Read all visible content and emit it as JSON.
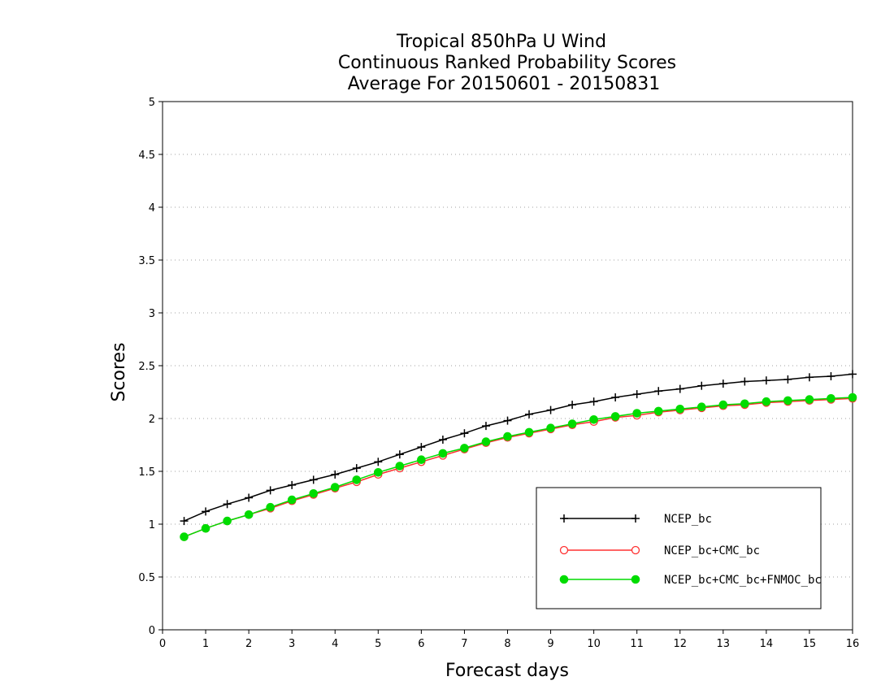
{
  "chart_data": {
    "type": "line",
    "title": [
      "Tropical 850hPa U Wind",
      "Continuous Ranked Probability Scores",
      "Average For 20150601 - 20150831"
    ],
    "xlabel": "Forecast days",
    "ylabel": "Scores",
    "xlim": [
      0,
      16
    ],
    "ylim": [
      0,
      5
    ],
    "x_ticks": [
      "0",
      "1",
      "2",
      "3",
      "4",
      "5",
      "6",
      "7",
      "8",
      "9",
      "10",
      "11",
      "12",
      "13",
      "14",
      "15",
      "16"
    ],
    "y_ticks": [
      "0",
      "0.5",
      "1",
      "1.5",
      "2",
      "2.5",
      "3",
      "3.5",
      "4",
      "4.5",
      "5"
    ],
    "grid": "horizontal dotted",
    "legend_position": "bottom-right",
    "x": [
      0.5,
      1,
      1.5,
      2,
      2.5,
      3,
      3.5,
      4,
      4.5,
      5,
      5.5,
      6,
      6.5,
      7,
      7.5,
      8,
      8.5,
      9,
      9.5,
      10,
      10.5,
      11,
      11.5,
      12,
      12.5,
      13,
      13.5,
      14,
      14.5,
      15,
      15.5,
      16
    ],
    "series": [
      {
        "name": "NCEP_bc",
        "color": "#000000",
        "marker": "plus",
        "values": [
          1.03,
          1.12,
          1.19,
          1.25,
          1.32,
          1.37,
          1.42,
          1.47,
          1.53,
          1.59,
          1.66,
          1.73,
          1.8,
          1.86,
          1.93,
          1.98,
          2.04,
          2.08,
          2.13,
          2.16,
          2.2,
          2.23,
          2.26,
          2.28,
          2.31,
          2.33,
          2.35,
          2.36,
          2.37,
          2.39,
          2.4,
          2.42
        ]
      },
      {
        "name": "NCEP_bc+CMC_bc",
        "color": "#ff3030",
        "marker": "open-circle",
        "values": [
          0.88,
          0.96,
          1.03,
          1.09,
          1.15,
          1.22,
          1.28,
          1.34,
          1.4,
          1.47,
          1.53,
          1.59,
          1.65,
          1.71,
          1.77,
          1.82,
          1.86,
          1.9,
          1.94,
          1.97,
          2.01,
          2.03,
          2.06,
          2.08,
          2.1,
          2.12,
          2.13,
          2.15,
          2.16,
          2.17,
          2.18,
          2.19
        ]
      },
      {
        "name": "NCEP_bc+CMC_bc+FNMOC_bc",
        "color": "#00dc00",
        "marker": "filled-circle",
        "values": [
          0.88,
          0.96,
          1.03,
          1.09,
          1.16,
          1.23,
          1.29,
          1.35,
          1.42,
          1.49,
          1.55,
          1.61,
          1.67,
          1.72,
          1.78,
          1.83,
          1.87,
          1.91,
          1.95,
          1.99,
          2.02,
          2.05,
          2.07,
          2.09,
          2.11,
          2.13,
          2.14,
          2.16,
          2.17,
          2.18,
          2.19,
          2.2
        ]
      }
    ]
  }
}
